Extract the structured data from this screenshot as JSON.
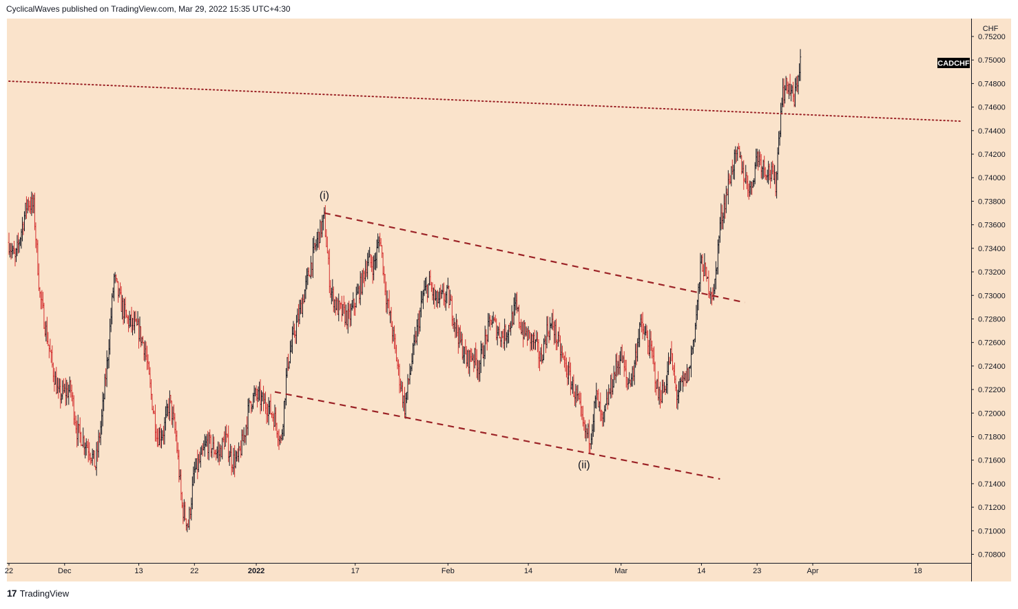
{
  "header": {
    "attribution": "CyclicalWaves published on TradingView.com, Mar 29, 2022 15:35 UTC+4:30"
  },
  "footer": {
    "logo": "17",
    "brand": "TradingView"
  },
  "colors": {
    "background": "#fae3cb",
    "bar_up": "#131722",
    "bar_down": "#d32f2f",
    "trendline": "#9b2226",
    "symbol_tag_bg": "#000000"
  },
  "chart_data": {
    "type": "ohlc",
    "symbol": "CADCHF",
    "currency": "CHF",
    "ylim": [
      0.707,
      0.753
    ],
    "y_ticks": [
      "0.75200",
      "0.75000",
      "0.74800",
      "0.74600",
      "0.74400",
      "0.74200",
      "0.74000",
      "0.73800",
      "0.73600",
      "0.73400",
      "0.73200",
      "0.73000",
      "0.72800",
      "0.72600",
      "0.72400",
      "0.72200",
      "0.72000",
      "0.71800",
      "0.71600",
      "0.71400",
      "0.71200",
      "0.71000",
      "0.70800"
    ],
    "x_ticks": [
      {
        "label": "22",
        "date": "2021-11-22"
      },
      {
        "label": "Dec",
        "date": "2021-12-01"
      },
      {
        "label": "13",
        "date": "2021-12-13"
      },
      {
        "label": "22",
        "date": "2021-12-22"
      },
      {
        "label": "2022",
        "date": "2022-01-01"
      },
      {
        "label": "17",
        "date": "2022-01-17"
      },
      {
        "label": "Feb",
        "date": "2022-02-01"
      },
      {
        "label": "14",
        "date": "2022-02-14"
      },
      {
        "label": "Mar",
        "date": "2022-03-01"
      },
      {
        "label": "14",
        "date": "2022-03-14"
      },
      {
        "label": "23",
        "date": "2022-03-23"
      },
      {
        "label": "Apr",
        "date": "2022-04-01"
      },
      {
        "label": "18",
        "date": "2022-04-18"
      }
    ],
    "price_path": [
      [
        "2021-11-22",
        0.7345
      ],
      [
        "2021-11-23",
        0.733
      ],
      [
        "2021-11-25",
        0.738
      ],
      [
        "2021-11-26",
        0.7375
      ],
      [
        "2021-11-27",
        0.73
      ],
      [
        "2021-11-29",
        0.724
      ],
      [
        "2021-11-30",
        0.7215
      ],
      [
        "2021-12-02",
        0.722
      ],
      [
        "2021-12-03",
        0.7185
      ],
      [
        "2021-12-05",
        0.717
      ],
      [
        "2021-12-06",
        0.7155
      ],
      [
        "2021-12-07",
        0.7195
      ],
      [
        "2021-12-08",
        0.725
      ],
      [
        "2021-12-09",
        0.7315
      ],
      [
        "2021-12-10",
        0.7295
      ],
      [
        "2021-12-11",
        0.728
      ],
      [
        "2021-12-13",
        0.727
      ],
      [
        "2021-12-14",
        0.7255
      ],
      [
        "2021-12-15",
        0.7215
      ],
      [
        "2021-12-16",
        0.718
      ],
      [
        "2021-12-17",
        0.7185
      ],
      [
        "2021-12-18",
        0.721
      ],
      [
        "2021-12-19",
        0.718
      ],
      [
        "2021-12-20",
        0.712
      ],
      [
        "2021-12-21",
        0.7105
      ],
      [
        "2021-12-22",
        0.715
      ],
      [
        "2021-12-23",
        0.716
      ],
      [
        "2021-12-24",
        0.7175
      ],
      [
        "2021-12-26",
        0.7165
      ],
      [
        "2021-12-27",
        0.718
      ],
      [
        "2021-12-28",
        0.716
      ],
      [
        "2021-12-29",
        0.716
      ],
      [
        "2021-12-30",
        0.718
      ],
      [
        "2021-12-31",
        0.721
      ],
      [
        "2022-01-01",
        0.7215
      ],
      [
        "2022-01-03",
        0.7205
      ],
      [
        "2022-01-04",
        0.7195
      ],
      [
        "2022-01-05",
        0.7175
      ],
      [
        "2022-01-06",
        0.724
      ],
      [
        "2022-01-07",
        0.7265
      ],
      [
        "2022-01-08",
        0.7285
      ],
      [
        "2022-01-10",
        0.733
      ],
      [
        "2022-01-11",
        0.735
      ],
      [
        "2022-01-12",
        0.7365
      ],
      [
        "2022-01-13",
        0.7305
      ],
      [
        "2022-01-14",
        0.729
      ],
      [
        "2022-01-16",
        0.728
      ],
      [
        "2022-01-17",
        0.7295
      ],
      [
        "2022-01-18",
        0.731
      ],
      [
        "2022-01-19",
        0.733
      ],
      [
        "2022-01-20",
        0.7325
      ],
      [
        "2022-01-21",
        0.735
      ],
      [
        "2022-01-22",
        0.73
      ],
      [
        "2022-01-23",
        0.727
      ],
      [
        "2022-01-24",
        0.7235
      ],
      [
        "2022-01-25",
        0.7205
      ],
      [
        "2022-01-26",
        0.724
      ],
      [
        "2022-01-27",
        0.727
      ],
      [
        "2022-01-28",
        0.73
      ],
      [
        "2022-01-29",
        0.731
      ],
      [
        "2022-01-30",
        0.7295
      ],
      [
        "2022-02-01",
        0.73
      ],
      [
        "2022-02-02",
        0.728
      ],
      [
        "2022-02-03",
        0.726
      ],
      [
        "2022-02-04",
        0.7245
      ],
      [
        "2022-02-05",
        0.725
      ],
      [
        "2022-02-06",
        0.724
      ],
      [
        "2022-02-07",
        0.726
      ],
      [
        "2022-02-08",
        0.728
      ],
      [
        "2022-02-09",
        0.727
      ],
      [
        "2022-02-10",
        0.7265
      ],
      [
        "2022-02-11",
        0.7275
      ],
      [
        "2022-02-12",
        0.729
      ],
      [
        "2022-02-13",
        0.727
      ],
      [
        "2022-02-15",
        0.726
      ],
      [
        "2022-02-16",
        0.7245
      ],
      [
        "2022-02-17",
        0.727
      ],
      [
        "2022-02-18",
        0.7275
      ],
      [
        "2022-02-19",
        0.7255
      ],
      [
        "2022-02-20",
        0.724
      ],
      [
        "2022-02-21",
        0.7225
      ],
      [
        "2022-02-22",
        0.721
      ],
      [
        "2022-02-23",
        0.7185
      ],
      [
        "2022-02-24",
        0.718
      ],
      [
        "2022-02-25",
        0.7215
      ],
      [
        "2022-02-26",
        0.719
      ],
      [
        "2022-02-27",
        0.7215
      ],
      [
        "2022-02-28",
        0.7235
      ],
      [
        "2022-03-01",
        0.725
      ],
      [
        "2022-03-02",
        0.7225
      ],
      [
        "2022-03-03",
        0.7235
      ],
      [
        "2022-03-04",
        0.7275
      ],
      [
        "2022-03-05",
        0.7265
      ],
      [
        "2022-03-06",
        0.725
      ],
      [
        "2022-03-07",
        0.7215
      ],
      [
        "2022-03-08",
        0.722
      ],
      [
        "2022-03-09",
        0.725
      ],
      [
        "2022-03-10",
        0.7215
      ],
      [
        "2022-03-11",
        0.7225
      ],
      [
        "2022-03-12",
        0.7235
      ],
      [
        "2022-03-13",
        0.7275
      ],
      [
        "2022-03-14",
        0.733
      ],
      [
        "2022-03-15",
        0.731
      ],
      [
        "2022-03-16",
        0.73
      ],
      [
        "2022-03-17",
        0.736
      ],
      [
        "2022-03-18",
        0.7385
      ],
      [
        "2022-03-19",
        0.741
      ],
      [
        "2022-03-20",
        0.742
      ],
      [
        "2022-03-21",
        0.74
      ],
      [
        "2022-03-22",
        0.739
      ],
      [
        "2022-03-23",
        0.742
      ],
      [
        "2022-03-24",
        0.741
      ],
      [
        "2022-03-25",
        0.7405
      ],
      [
        "2022-03-26",
        0.7395
      ],
      [
        "2022-03-27",
        0.747
      ],
      [
        "2022-03-28",
        0.748
      ],
      [
        "2022-03-29",
        0.7465
      ],
      [
        "2022-03-30",
        0.75
      ]
    ],
    "annotations": [
      {
        "label": "(i)",
        "date": "2022-01-12",
        "price": 0.7385
      },
      {
        "label": "(ii)",
        "date": "2022-02-23",
        "price": 0.7156
      }
    ],
    "trendlines": [
      {
        "name": "resistance-horizontal",
        "style": "dotted",
        "from": {
          "date": "2021-11-22",
          "price": 0.7482
        },
        "to": {
          "date": "2022-04-25",
          "price": 0.7448
        }
      },
      {
        "name": "channel-upper",
        "style": "dashed",
        "from": {
          "date": "2022-01-12",
          "price": 0.737
        },
        "to": {
          "date": "2022-03-21",
          "price": 0.7294
        }
      },
      {
        "name": "channel-lower",
        "style": "dashed",
        "from": {
          "date": "2022-01-04",
          "price": 0.7218
        },
        "to": {
          "date": "2022-03-17",
          "price": 0.7144
        }
      }
    ]
  }
}
